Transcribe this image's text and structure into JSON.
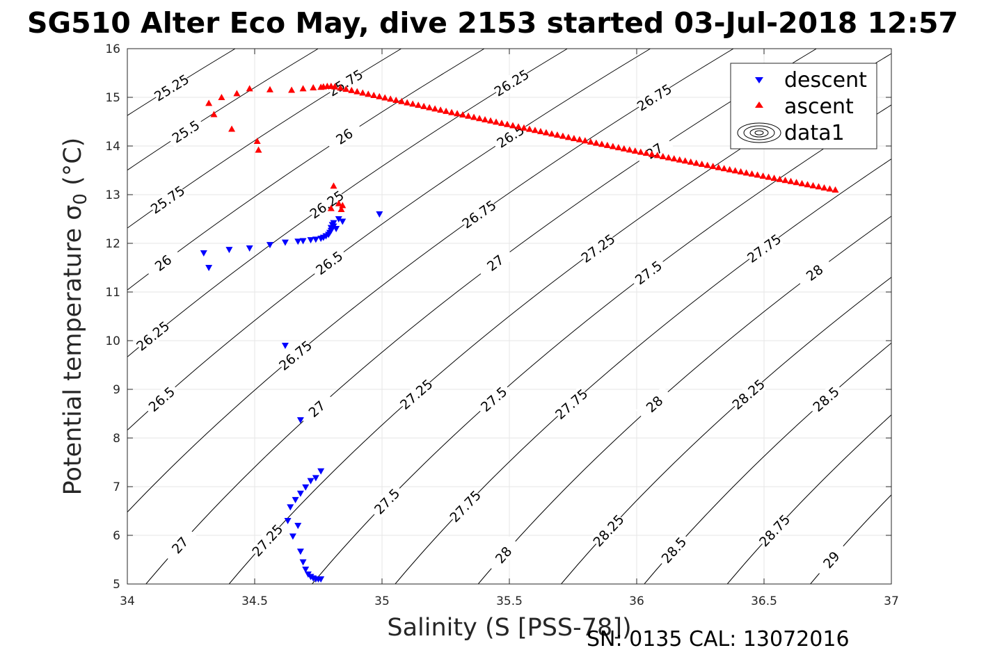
{
  "chart_data": {
    "type": "scatter",
    "title": "SG510 Alter Eco May, dive 2153 started 03-Jul-2018 12:57",
    "xlabel": "Salinity (S [PSS-78])",
    "ylabel": "Potential temperature σ",
    "ylabel_subscript": "0",
    "ylabel_unit": "(°C)",
    "xlim": [
      34,
      37
    ],
    "ylim": [
      5,
      16
    ],
    "x_ticks": [
      34,
      34.5,
      35,
      35.5,
      36,
      36.5,
      37
    ],
    "y_ticks": [
      5,
      6,
      7,
      8,
      9,
      10,
      11,
      12,
      13,
      14,
      15,
      16
    ],
    "x_tick_labels": [
      "34",
      "34.5",
      "35",
      "35.5",
      "36",
      "36.5",
      "37"
    ],
    "y_tick_labels": [
      "5",
      "6",
      "7",
      "8",
      "9",
      "10",
      "11",
      "12",
      "13",
      "14",
      "15",
      "16"
    ],
    "grid": true,
    "legend_position": "top-right",
    "footer": "SN: 0135  CAL: 13072016",
    "series": [
      {
        "name": "descent",
        "marker": "triangle-down",
        "color": "#0000ff",
        "x": [
          34.3,
          34.32,
          34.4,
          34.48,
          34.56,
          34.62,
          34.67,
          34.69,
          34.72,
          34.74,
          34.76,
          34.77,
          34.78,
          34.79,
          34.795,
          34.8,
          34.8,
          34.805,
          34.81,
          34.81,
          34.82,
          34.83,
          34.845,
          34.99,
          34.62,
          34.68,
          34.76,
          34.74,
          34.72,
          34.7,
          34.68,
          34.66,
          34.64,
          34.63,
          34.67,
          34.65,
          34.68,
          34.69,
          34.7,
          34.71,
          34.72,
          34.73,
          34.74,
          34.75,
          34.76
        ],
        "y": [
          11.8,
          11.5,
          11.87,
          11.9,
          11.97,
          12.02,
          12.04,
          12.05,
          12.07,
          12.08,
          12.1,
          12.12,
          12.15,
          12.18,
          12.22,
          12.26,
          12.32,
          12.38,
          12.42,
          12.35,
          12.3,
          12.5,
          12.45,
          12.6,
          9.9,
          8.37,
          7.32,
          7.18,
          7.12,
          6.99,
          6.86,
          6.73,
          6.58,
          6.3,
          6.2,
          5.98,
          5.67,
          5.45,
          5.3,
          5.2,
          5.15,
          5.12,
          5.1,
          5.1,
          5.1
        ]
      },
      {
        "name": "ascent",
        "marker": "triangle-up",
        "color": "#ff0000",
        "x": [
          34.32,
          34.34,
          34.37,
          34.41,
          34.43,
          34.48,
          34.51,
          34.515,
          34.56,
          34.81,
          34.83,
          34.845,
          34.84,
          34.8,
          34.645,
          34.69,
          34.73,
          34.76,
          34.77,
          34.785,
          34.8,
          34.815
        ],
        "y": [
          14.88,
          14.65,
          15.0,
          14.35,
          15.08,
          15.18,
          14.1,
          13.92,
          15.16,
          13.18,
          12.82,
          12.78,
          12.7,
          12.72,
          15.15,
          15.18,
          15.2,
          15.21,
          15.22,
          15.23,
          15.23,
          15.22
        ],
        "line_from": [
          34.815,
          15.22
        ],
        "line_to": [
          36.78,
          13.1
        ],
        "line_count": 90
      },
      {
        "name": "data1",
        "marker": "contour",
        "color": "#000000",
        "contour_levels": [
          "25.25",
          "25.5",
          "25.75",
          "26",
          "26.25",
          "26.5",
          "26.75",
          "27",
          "27.25",
          "27.5",
          "27.75",
          "28",
          "28.25",
          "28.5",
          "28.75",
          "29"
        ]
      }
    ]
  }
}
